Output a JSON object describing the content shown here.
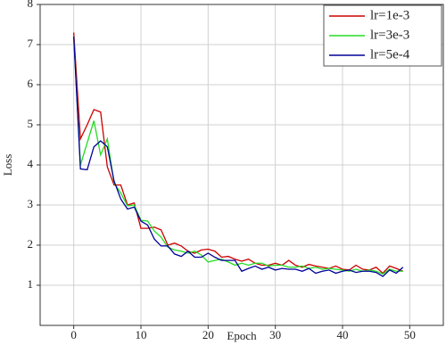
{
  "chart_data": {
    "type": "line",
    "xlabel": "Epoch",
    "ylabel": "Loss",
    "x": [
      0,
      1,
      2,
      3,
      4,
      5,
      6,
      7,
      8,
      9,
      10,
      11,
      12,
      13,
      14,
      15,
      16,
      17,
      18,
      19,
      20,
      21,
      22,
      23,
      24,
      25,
      26,
      27,
      28,
      29,
      30,
      31,
      32,
      33,
      34,
      35,
      36,
      37,
      38,
      39,
      40,
      41,
      42,
      43,
      44,
      45,
      46,
      47,
      48,
      49
    ],
    "series": [
      {
        "name": "lr=1e-3",
        "color": "#cc0000",
        "values": [
          7.3,
          4.65,
          5.0,
          5.38,
          5.32,
          3.95,
          3.5,
          3.5,
          3.0,
          3.05,
          2.42,
          2.42,
          2.45,
          2.38,
          2.0,
          2.05,
          1.98,
          1.85,
          1.8,
          1.88,
          1.9,
          1.85,
          1.7,
          1.72,
          1.65,
          1.6,
          1.65,
          1.55,
          1.5,
          1.5,
          1.55,
          1.5,
          1.62,
          1.5,
          1.45,
          1.52,
          1.48,
          1.45,
          1.42,
          1.48,
          1.4,
          1.38,
          1.5,
          1.4,
          1.38,
          1.45,
          1.3,
          1.48,
          1.42,
          1.35
        ]
      },
      {
        "name": "lr=3e-3",
        "color": "#22dd22",
        "values": [
          7.2,
          4.0,
          4.55,
          5.1,
          4.25,
          4.65,
          3.55,
          3.3,
          2.98,
          3.0,
          2.62,
          2.6,
          2.35,
          2.2,
          1.95,
          1.88,
          1.85,
          1.8,
          1.85,
          1.75,
          1.58,
          1.62,
          1.65,
          1.58,
          1.5,
          1.55,
          1.5,
          1.55,
          1.55,
          1.48,
          1.5,
          1.5,
          1.45,
          1.45,
          1.48,
          1.42,
          1.45,
          1.4,
          1.42,
          1.4,
          1.38,
          1.35,
          1.4,
          1.35,
          1.38,
          1.35,
          1.28,
          1.4,
          1.35,
          1.35
        ]
      },
      {
        "name": "lr=5e-4",
        "color": "#000099",
        "values": [
          7.2,
          3.9,
          3.88,
          4.45,
          4.6,
          4.45,
          3.6,
          3.15,
          2.9,
          2.95,
          2.6,
          2.5,
          2.15,
          1.98,
          1.98,
          1.78,
          1.72,
          1.85,
          1.7,
          1.7,
          1.8,
          1.7,
          1.62,
          1.62,
          1.62,
          1.35,
          1.42,
          1.48,
          1.4,
          1.45,
          1.38,
          1.42,
          1.4,
          1.4,
          1.35,
          1.42,
          1.3,
          1.35,
          1.38,
          1.3,
          1.35,
          1.38,
          1.32,
          1.35,
          1.35,
          1.32,
          1.22,
          1.38,
          1.3,
          1.45
        ]
      }
    ],
    "xlim": [
      -5,
      55
    ],
    "ylim": [
      0,
      8
    ],
    "xticks": [
      0,
      10,
      20,
      30,
      40,
      50
    ],
    "yticks": [
      1,
      2,
      3,
      4,
      5,
      6,
      7,
      8
    ],
    "grid": true,
    "legend": "upper right"
  }
}
